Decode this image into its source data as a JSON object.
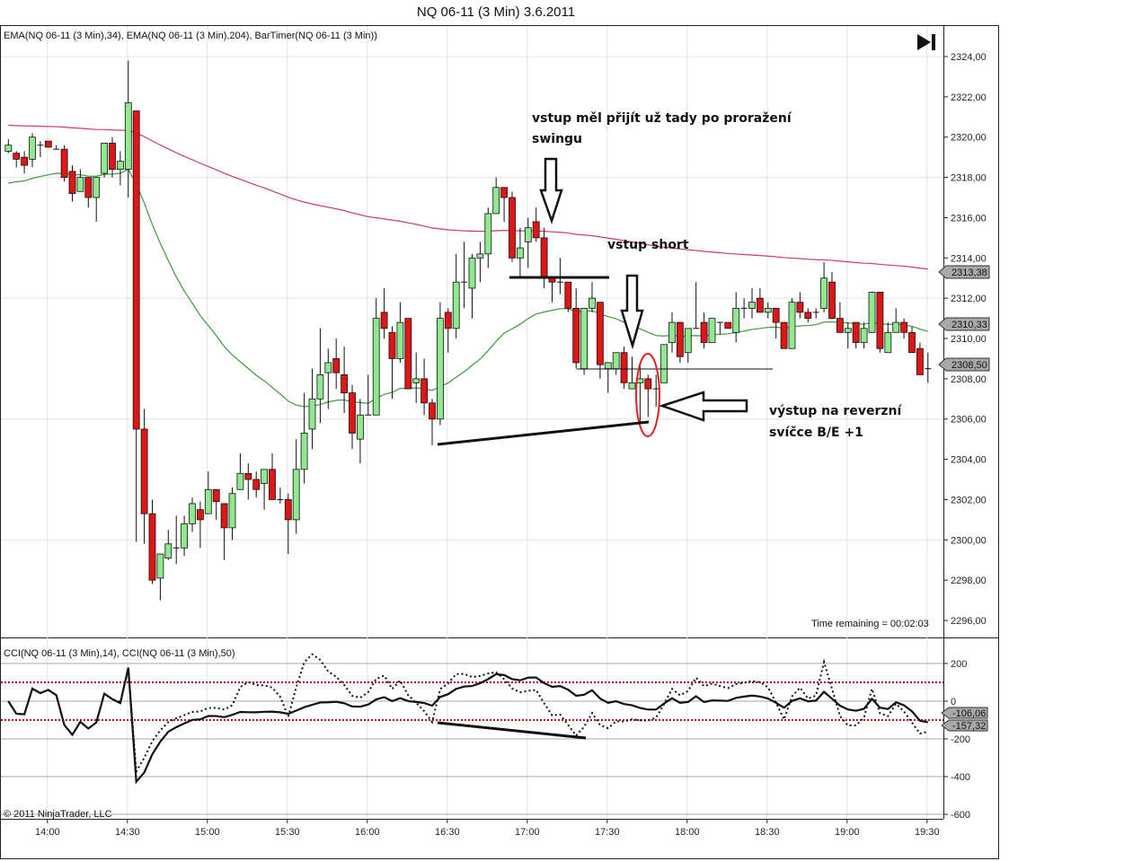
{
  "window_title": "NQ 06-11 (3 Min)  3.6.2011",
  "price_panel": {
    "indicators_label": "EMA(NQ 06-11 (3 Min),34), EMA(NQ 06-11 (3 Min),204), BarTimer(NQ 06-11 (3 Min))",
    "bar_timer_text": "Time remaining = 00:02:03",
    "ema204_label": "2313,38",
    "ema34_label": "2310,33",
    "last_price_label": "2308,50"
  },
  "cci_panel": {
    "indicators_label": "CCI(NQ 06-11 (3 Min),14), CCI(NQ 06-11 (3 Min),50)",
    "cci50_label": "-106,06",
    "cci14_label": "-157,32",
    "copyright": "© 2011 NinjaTrader, LLC"
  },
  "annotations": {
    "entry_note_line1": "vstup měl přijít už tady po proražení",
    "entry_note_line2": "swingu",
    "short_note": "vstup short",
    "exit_note_line1": "výstup na reverzní",
    "exit_note_line2": "svíčce B/E +1"
  },
  "colors": {
    "up_candle": "#90e890",
    "down_candle": "#e01515",
    "ema34": "#3d9a3d",
    "ema204": "#c8405e",
    "cci_level": "#b01010",
    "ellipse": "#e02020"
  },
  "chart_data": {
    "type": "candlestick",
    "symbol": "NQ 06-11",
    "interval": "3 Min",
    "first_bar_time": "13:45",
    "ylim": [
      2295.2,
      2324.6
    ],
    "price_ticks": [
      "2324,00",
      "2322,00",
      "2320,00",
      "2318,00",
      "2316,00",
      "2314,00",
      "2312,00",
      "2310,00",
      "2308,00",
      "2306,00",
      "2304,00",
      "2302,00",
      "2300,00",
      "2298,00",
      "2296,00"
    ],
    "price_tick_values": [
      2324,
      2322,
      2320,
      2318,
      2316,
      2314,
      2312,
      2310,
      2308,
      2306,
      2304,
      2302,
      2300,
      2298,
      2296
    ],
    "time_ticks": [
      "14:00",
      "14:30",
      "15:00",
      "15:30",
      "16:00",
      "16:30",
      "17:00",
      "17:30",
      "18:00",
      "18:30",
      "19:00",
      "19:30"
    ],
    "time_tick_bars": [
      5,
      15,
      25,
      35,
      45,
      55,
      65,
      75,
      85,
      95,
      105,
      115
    ],
    "cci_ticks": [
      "200",
      "0",
      "-200",
      "-400",
      "-600"
    ],
    "cci_tick_values": [
      200,
      0,
      -200,
      -400,
      -600
    ],
    "cci_levels": [
      100,
      -100
    ],
    "ema34_seed": 2317.6,
    "ema204_seed": 2320.6,
    "ohlc": [
      [
        2319.3,
        2319.9,
        2319.2,
        2319.6
      ],
      [
        2319.2,
        2319.3,
        2318.5,
        2318.9
      ],
      [
        2319.0,
        2319.3,
        2318.2,
        2318.6
      ],
      [
        2318.9,
        2320.2,
        2318.5,
        2320.0
      ],
      [
        2319.6,
        2319.8,
        2319.0,
        2319.6
      ],
      [
        2319.8,
        2319.8,
        2319.5,
        2319.5
      ],
      [
        2319.4,
        2319.6,
        2319.4,
        2319.4
      ],
      [
        2319.4,
        2319.6,
        2317.8,
        2318.0
      ],
      [
        2318.3,
        2318.6,
        2316.8,
        2317.2
      ],
      [
        2317.3,
        2318.4,
        2317.3,
        2318.0
      ],
      [
        2318.0,
        2318.0,
        2316.5,
        2317.0
      ],
      [
        2317.0,
        2318.0,
        2315.8,
        2318.0
      ],
      [
        2318.2,
        2319.7,
        2318.0,
        2319.7
      ],
      [
        2319.7,
        2320.0,
        2318.0,
        2318.4
      ],
      [
        2318.4,
        2319.3,
        2317.6,
        2318.8
      ],
      [
        2318.4,
        2323.8,
        2317.0,
        2321.7
      ],
      [
        2321.3,
        2321.3,
        2299.9,
        2305.5
      ],
      [
        2305.5,
        2306.5,
        2299.8,
        2301.3
      ],
      [
        2301.3,
        2302.0,
        2297.8,
        2298.0
      ],
      [
        2298.1,
        2299.3,
        2297.0,
        2299.3
      ],
      [
        2299.1,
        2300.5,
        2299.0,
        2299.8
      ],
      [
        2299.6,
        2301.2,
        2298.8,
        2299.6
      ],
      [
        2299.6,
        2301.2,
        2299.2,
        2300.8
      ],
      [
        2300.8,
        2302.1,
        2300.4,
        2301.8
      ],
      [
        2301.5,
        2301.9,
        2299.6,
        2301.0
      ],
      [
        2301.3,
        2303.4,
        2301.3,
        2302.5
      ],
      [
        2302.5,
        2302.5,
        2301.0,
        2301.9
      ],
      [
        2301.8,
        2301.8,
        2299.0,
        2300.6
      ],
      [
        2300.6,
        2302.6,
        2300.0,
        2302.3
      ],
      [
        2302.5,
        2304.3,
        2302.5,
        2303.3
      ],
      [
        2303.3,
        2303.8,
        2302.0,
        2303.0
      ],
      [
        2303.0,
        2303.4,
        2302.1,
        2302.5
      ],
      [
        2302.8,
        2303.5,
        2301.5,
        2303.5
      ],
      [
        2303.5,
        2304.3,
        2302.0,
        2302.0
      ],
      [
        2302.0,
        2302.6,
        2301.8,
        2302.0
      ],
      [
        2302.0,
        2302.3,
        2299.3,
        2301.0
      ],
      [
        2301.0,
        2305.0,
        2300.3,
        2303.5
      ],
      [
        2303.5,
        2307.3,
        2302.8,
        2305.3
      ],
      [
        2305.5,
        2308.5,
        2304.5,
        2307.0
      ],
      [
        2307.0,
        2310.5,
        2305.8,
        2308.2
      ],
      [
        2308.3,
        2309.5,
        2306.5,
        2308.8
      ],
      [
        2309.0,
        2310.0,
        2307.5,
        2308.3
      ],
      [
        2308.2,
        2309.6,
        2306.3,
        2307.3
      ],
      [
        2307.3,
        2307.7,
        2304.5,
        2305.3
      ],
      [
        2305.0,
        2307.0,
        2303.8,
        2306.2
      ],
      [
        2306.2,
        2308.2,
        2306.2,
        2306.2
      ],
      [
        2306.2,
        2312.0,
        2306.2,
        2311.0
      ],
      [
        2311.3,
        2312.5,
        2310.0,
        2310.5
      ],
      [
        2310.3,
        2310.6,
        2307.0,
        2309.0
      ],
      [
        2309.0,
        2311.8,
        2308.8,
        2310.8
      ],
      [
        2311.0,
        2311.0,
        2307.5,
        2307.5
      ],
      [
        2307.8,
        2309.3,
        2306.8,
        2308.0
      ],
      [
        2308.0,
        2309.0,
        2306.2,
        2306.8
      ],
      [
        2306.8,
        2307.0,
        2304.7,
        2306.0
      ],
      [
        2306.0,
        2311.8,
        2305.7,
        2311.0
      ],
      [
        2311.3,
        2311.5,
        2309.3,
        2310.5
      ],
      [
        2310.5,
        2314.2,
        2310.0,
        2312.8
      ],
      [
        2312.8,
        2314.8,
        2311.5,
        2312.8
      ],
      [
        2312.5,
        2314.2,
        2311.0,
        2314.0
      ],
      [
        2314.0,
        2314.8,
        2312.8,
        2314.2
      ],
      [
        2314.2,
        2316.5,
        2313.5,
        2316.2
      ],
      [
        2316.2,
        2318.0,
        2316.2,
        2317.5
      ],
      [
        2317.5,
        2317.5,
        2315.8,
        2317.0
      ],
      [
        2317.0,
        2317.3,
        2313.8,
        2314.0
      ],
      [
        2314.0,
        2315.5,
        2313.1,
        2314.5
      ],
      [
        2314.8,
        2316.0,
        2313.5,
        2315.5
      ],
      [
        2315.8,
        2316.5,
        2314.8,
        2315.0
      ],
      [
        2315.0,
        2315.5,
        2312.5,
        2313.0
      ],
      [
        2313.0,
        2313.0,
        2311.8,
        2312.8
      ],
      [
        2312.8,
        2314.0,
        2312.2,
        2312.8
      ],
      [
        2312.8,
        2312.8,
        2311.3,
        2311.5
      ],
      [
        2311.5,
        2312.5,
        2308.5,
        2308.8
      ],
      [
        2308.5,
        2311.5,
        2308.2,
        2311.5
      ],
      [
        2311.5,
        2312.8,
        2311.3,
        2312.0
      ],
      [
        2311.8,
        2311.8,
        2308.0,
        2308.7
      ],
      [
        2308.5,
        2308.8,
        2307.3,
        2308.8
      ],
      [
        2308.5,
        2309.3,
        2308.2,
        2309.3
      ],
      [
        2309.3,
        2309.6,
        2307.5,
        2307.8
      ],
      [
        2307.5,
        2309.1,
        2307.5,
        2307.8
      ],
      [
        2307.8,
        2308.8,
        2305.8,
        2308.0
      ],
      [
        2308.0,
        2308.2,
        2306.1,
        2307.5
      ],
      [
        2307.5,
        2308.2,
        2306.6,
        2307.5
      ],
      [
        2307.8,
        2309.7,
        2307.8,
        2309.7
      ],
      [
        2309.8,
        2311.3,
        2309.3,
        2310.8
      ],
      [
        2310.8,
        2310.8,
        2308.8,
        2309.1
      ],
      [
        2309.3,
        2310.5,
        2308.8,
        2310.5
      ],
      [
        2310.5,
        2312.8,
        2310.5,
        2310.5
      ],
      [
        2310.8,
        2311.3,
        2309.5,
        2309.8
      ],
      [
        2309.8,
        2311.0,
        2309.8,
        2311.0
      ],
      [
        2310.8,
        2310.8,
        2310.2,
        2310.8
      ],
      [
        2310.8,
        2310.8,
        2310.5,
        2310.5
      ],
      [
        2310.3,
        2312.3,
        2309.8,
        2311.5
      ],
      [
        2311.5,
        2312.0,
        2311.0,
        2311.5
      ],
      [
        2311.5,
        2312.5,
        2311.0,
        2311.8
      ],
      [
        2312.0,
        2312.5,
        2311.3,
        2311.3
      ],
      [
        2311.3,
        2311.8,
        2311.0,
        2311.5
      ],
      [
        2311.5,
        2311.5,
        2310.0,
        2310.8
      ],
      [
        2310.8,
        2310.8,
        2309.5,
        2309.5
      ],
      [
        2309.5,
        2312.0,
        2309.5,
        2311.8
      ],
      [
        2311.8,
        2312.3,
        2311.0,
        2311.3
      ],
      [
        2311.3,
        2311.5,
        2310.8,
        2311.0
      ],
      [
        2311.3,
        2311.5,
        2311.0,
        2311.3
      ],
      [
        2311.5,
        2313.8,
        2311.3,
        2313.0
      ],
      [
        2312.8,
        2313.3,
        2311.0,
        2311.0
      ],
      [
        2311.0,
        2311.8,
        2310.3,
        2310.3
      ],
      [
        2310.3,
        2310.8,
        2309.5,
        2310.5
      ],
      [
        2310.8,
        2310.8,
        2309.5,
        2309.8
      ],
      [
        2309.8,
        2310.8,
        2309.5,
        2310.5
      ],
      [
        2310.3,
        2312.3,
        2310.3,
        2312.3
      ],
      [
        2312.3,
        2312.3,
        2309.3,
        2309.5
      ],
      [
        2309.3,
        2310.8,
        2309.3,
        2310.3
      ],
      [
        2310.3,
        2311.5,
        2310.3,
        2310.8
      ],
      [
        2310.8,
        2311.0,
        2310.0,
        2310.3
      ],
      [
        2310.3,
        2310.6,
        2309.3,
        2309.3
      ],
      [
        2309.5,
        2309.8,
        2308.2,
        2308.2
      ],
      [
        2308.5,
        2309.3,
        2307.8,
        2308.5
      ]
    ]
  }
}
